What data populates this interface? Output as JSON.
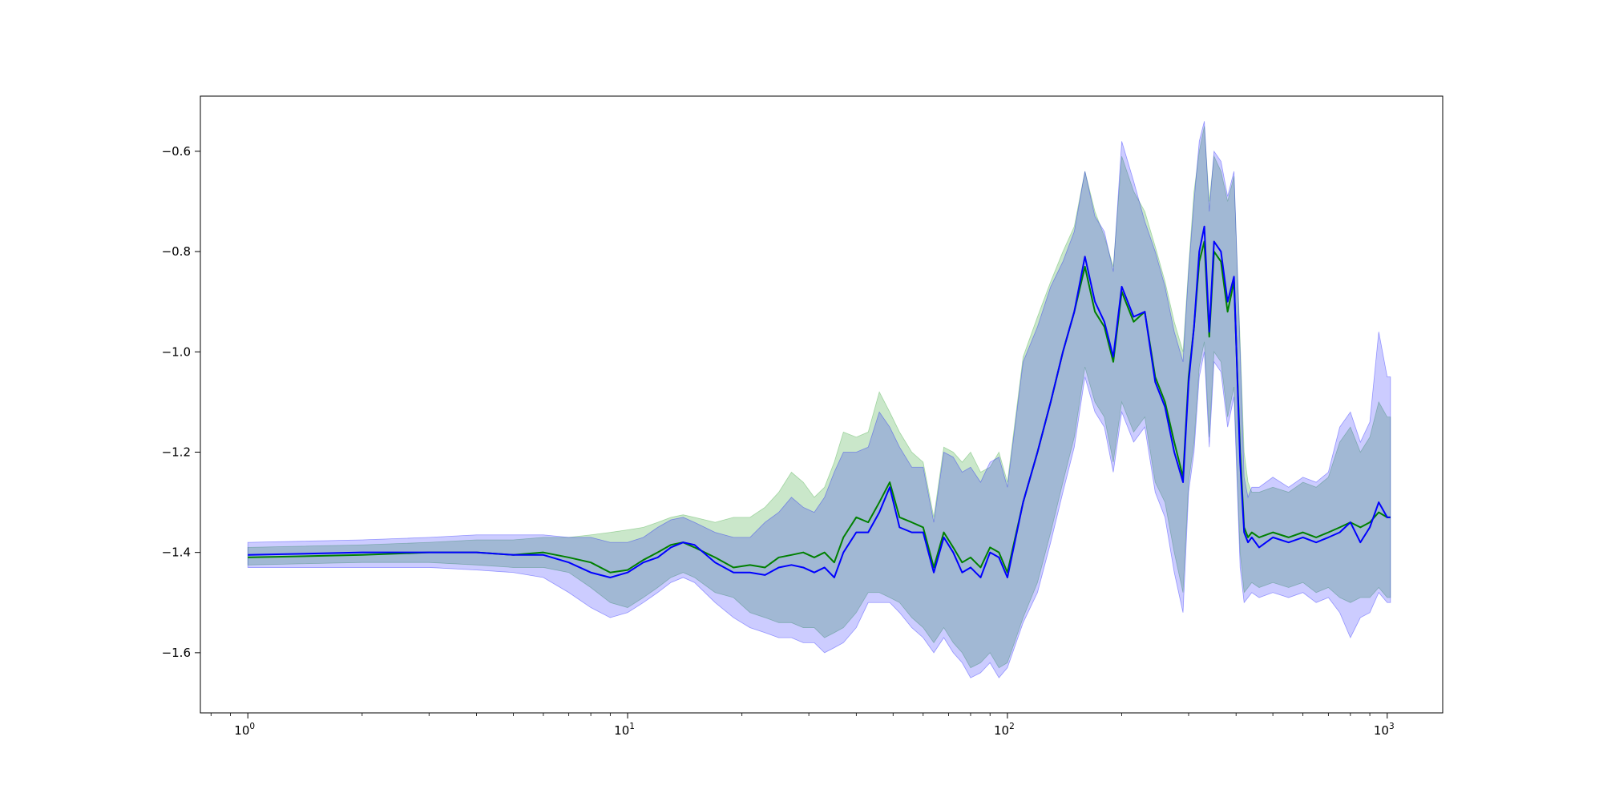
{
  "chart_data": {
    "type": "line",
    "title": "",
    "xlabel": "",
    "ylabel": "",
    "x_scale": "log",
    "xlim": [
      0.75,
      1400
    ],
    "ylim": [
      -1.72,
      -0.49
    ],
    "grid": false,
    "legend": "none",
    "x_ticks": [
      {
        "base": "10",
        "exp": "0",
        "value": 1
      },
      {
        "base": "10",
        "exp": "1",
        "value": 10
      },
      {
        "base": "10",
        "exp": "2",
        "value": 100
      },
      {
        "base": "10",
        "exp": "3",
        "value": 1000
      }
    ],
    "y_ticks": [
      {
        "label": "−0.6",
        "value": -0.6
      },
      {
        "label": "−0.8",
        "value": -0.8
      },
      {
        "label": "−1.0",
        "value": -1.0
      },
      {
        "label": "−1.2",
        "value": -1.2
      },
      {
        "label": "−1.4",
        "value": -1.4
      },
      {
        "label": "−1.6",
        "value": -1.6
      }
    ],
    "series": [
      {
        "color": "#008000",
        "band_color": "#2ca02c",
        "band_opacity": 0.25,
        "x": [
          1,
          2,
          3,
          4,
          5,
          6,
          7,
          8,
          9,
          10,
          11,
          12,
          13,
          14,
          15,
          17,
          19,
          21,
          23,
          25,
          27,
          29,
          31,
          33,
          35,
          37,
          40,
          43,
          46,
          49,
          52,
          56,
          60,
          64,
          68,
          72,
          76,
          80,
          85,
          90,
          95,
          100,
          110,
          120,
          130,
          140,
          150,
          160,
          170,
          180,
          190,
          200,
          215,
          230,
          245,
          260,
          275,
          290,
          300,
          310,
          320,
          330,
          340,
          350,
          365,
          380,
          395,
          410,
          420,
          430,
          440,
          460,
          500,
          550,
          600,
          650,
          700,
          750,
          800,
          850,
          900,
          950,
          1000,
          1020
        ],
        "y": [
          -1.41,
          -1.405,
          -1.4,
          -1.4,
          -1.405,
          -1.4,
          -1.41,
          -1.42,
          -1.44,
          -1.435,
          -1.415,
          -1.4,
          -1.385,
          -1.38,
          -1.39,
          -1.41,
          -1.43,
          -1.425,
          -1.43,
          -1.41,
          -1.405,
          -1.4,
          -1.41,
          -1.4,
          -1.42,
          -1.37,
          -1.33,
          -1.34,
          -1.3,
          -1.26,
          -1.33,
          -1.34,
          -1.35,
          -1.43,
          -1.36,
          -1.39,
          -1.42,
          -1.41,
          -1.43,
          -1.39,
          -1.4,
          -1.44,
          -1.3,
          -1.2,
          -1.1,
          -1.0,
          -0.92,
          -0.83,
          -0.92,
          -0.95,
          -1.02,
          -0.88,
          -0.94,
          -0.92,
          -1.05,
          -1.1,
          -1.18,
          -1.25,
          -1.05,
          -0.95,
          -0.82,
          -0.78,
          -0.97,
          -0.8,
          -0.82,
          -0.92,
          -0.86,
          -1.2,
          -1.35,
          -1.37,
          -1.36,
          -1.37,
          -1.36,
          -1.37,
          -1.36,
          -1.37,
          -1.36,
          -1.35,
          -1.34,
          -1.35,
          -1.34,
          -1.32,
          -1.33,
          -1.33
        ],
        "upper": [
          -1.39,
          -1.385,
          -1.38,
          -1.375,
          -1.375,
          -1.37,
          -1.37,
          -1.365,
          -1.36,
          -1.355,
          -1.35,
          -1.34,
          -1.33,
          -1.325,
          -1.33,
          -1.34,
          -1.33,
          -1.33,
          -1.31,
          -1.28,
          -1.24,
          -1.26,
          -1.29,
          -1.27,
          -1.22,
          -1.16,
          -1.17,
          -1.16,
          -1.08,
          -1.12,
          -1.16,
          -1.2,
          -1.22,
          -1.33,
          -1.19,
          -1.2,
          -1.22,
          -1.2,
          -1.24,
          -1.23,
          -1.2,
          -1.26,
          -1.01,
          -0.93,
          -0.86,
          -0.8,
          -0.75,
          -0.64,
          -0.72,
          -0.77,
          -0.83,
          -0.61,
          -0.68,
          -0.72,
          -0.79,
          -0.86,
          -0.94,
          -1.0,
          -0.83,
          -0.68,
          -0.6,
          -0.55,
          -0.7,
          -0.61,
          -0.64,
          -0.7,
          -0.65,
          -0.98,
          -1.2,
          -1.26,
          -1.28,
          -1.28,
          -1.27,
          -1.28,
          -1.26,
          -1.27,
          -1.25,
          -1.18,
          -1.15,
          -1.2,
          -1.17,
          -1.1,
          -1.13,
          -1.13
        ],
        "lower": [
          -1.425,
          -1.42,
          -1.42,
          -1.425,
          -1.43,
          -1.43,
          -1.44,
          -1.47,
          -1.5,
          -1.51,
          -1.49,
          -1.47,
          -1.45,
          -1.44,
          -1.45,
          -1.48,
          -1.49,
          -1.52,
          -1.53,
          -1.54,
          -1.54,
          -1.55,
          -1.55,
          -1.57,
          -1.56,
          -1.55,
          -1.52,
          -1.48,
          -1.48,
          -1.49,
          -1.5,
          -1.53,
          -1.55,
          -1.58,
          -1.55,
          -1.58,
          -1.6,
          -1.63,
          -1.62,
          -1.6,
          -1.63,
          -1.62,
          -1.53,
          -1.46,
          -1.36,
          -1.26,
          -1.17,
          -1.03,
          -1.1,
          -1.13,
          -1.22,
          -1.1,
          -1.16,
          -1.13,
          -1.26,
          -1.3,
          -1.4,
          -1.48,
          -1.26,
          -1.18,
          -1.03,
          -0.98,
          -1.17,
          -1.0,
          -1.02,
          -1.13,
          -1.07,
          -1.4,
          -1.48,
          -1.47,
          -1.46,
          -1.47,
          -1.46,
          -1.47,
          -1.46,
          -1.48,
          -1.47,
          -1.49,
          -1.5,
          -1.49,
          -1.49,
          -1.47,
          -1.49,
          -1.49
        ]
      },
      {
        "color": "#0000ff",
        "band_color": "#0000ff",
        "band_opacity": 0.2,
        "x": [
          1,
          2,
          3,
          4,
          5,
          6,
          7,
          8,
          9,
          10,
          11,
          12,
          13,
          14,
          15,
          17,
          19,
          21,
          23,
          25,
          27,
          29,
          31,
          33,
          35,
          37,
          40,
          43,
          46,
          49,
          52,
          56,
          60,
          64,
          68,
          72,
          76,
          80,
          85,
          90,
          95,
          100,
          110,
          120,
          130,
          140,
          150,
          160,
          170,
          180,
          190,
          200,
          215,
          230,
          245,
          260,
          275,
          290,
          300,
          310,
          320,
          330,
          340,
          350,
          365,
          380,
          395,
          410,
          420,
          430,
          440,
          460,
          500,
          550,
          600,
          650,
          700,
          750,
          800,
          850,
          900,
          950,
          1000,
          1020
        ],
        "y": [
          -1.405,
          -1.4,
          -1.4,
          -1.4,
          -1.405,
          -1.405,
          -1.42,
          -1.44,
          -1.45,
          -1.44,
          -1.42,
          -1.41,
          -1.39,
          -1.38,
          -1.385,
          -1.42,
          -1.44,
          -1.44,
          -1.445,
          -1.43,
          -1.425,
          -1.43,
          -1.44,
          -1.43,
          -1.45,
          -1.4,
          -1.36,
          -1.36,
          -1.32,
          -1.27,
          -1.35,
          -1.36,
          -1.36,
          -1.44,
          -1.37,
          -1.4,
          -1.44,
          -1.43,
          -1.45,
          -1.4,
          -1.41,
          -1.45,
          -1.3,
          -1.2,
          -1.1,
          -1.0,
          -0.92,
          -0.81,
          -0.9,
          -0.94,
          -1.01,
          -0.87,
          -0.93,
          -0.92,
          -1.06,
          -1.11,
          -1.2,
          -1.26,
          -1.06,
          -0.95,
          -0.8,
          -0.75,
          -0.96,
          -0.78,
          -0.8,
          -0.9,
          -0.85,
          -1.22,
          -1.36,
          -1.38,
          -1.37,
          -1.39,
          -1.37,
          -1.38,
          -1.37,
          -1.38,
          -1.37,
          -1.36,
          -1.34,
          -1.38,
          -1.35,
          -1.3,
          -1.33,
          -1.33
        ],
        "upper": [
          -1.38,
          -1.375,
          -1.37,
          -1.365,
          -1.365,
          -1.365,
          -1.37,
          -1.37,
          -1.38,
          -1.38,
          -1.37,
          -1.35,
          -1.335,
          -1.33,
          -1.34,
          -1.36,
          -1.37,
          -1.37,
          -1.34,
          -1.32,
          -1.29,
          -1.31,
          -1.32,
          -1.29,
          -1.24,
          -1.2,
          -1.2,
          -1.19,
          -1.12,
          -1.15,
          -1.19,
          -1.23,
          -1.23,
          -1.34,
          -1.2,
          -1.21,
          -1.24,
          -1.23,
          -1.26,
          -1.22,
          -1.21,
          -1.27,
          -1.02,
          -0.95,
          -0.87,
          -0.82,
          -0.76,
          -0.64,
          -0.73,
          -0.76,
          -0.84,
          -0.58,
          -0.66,
          -0.74,
          -0.8,
          -0.87,
          -0.96,
          -1.02,
          -0.84,
          -0.7,
          -0.58,
          -0.54,
          -0.72,
          -0.6,
          -0.62,
          -0.69,
          -0.64,
          -1.0,
          -1.25,
          -1.29,
          -1.27,
          -1.27,
          -1.25,
          -1.27,
          -1.25,
          -1.26,
          -1.24,
          -1.15,
          -1.12,
          -1.18,
          -1.14,
          -0.96,
          -1.05,
          -1.05
        ],
        "lower": [
          -1.43,
          -1.43,
          -1.43,
          -1.435,
          -1.44,
          -1.45,
          -1.48,
          -1.51,
          -1.53,
          -1.52,
          -1.5,
          -1.48,
          -1.46,
          -1.45,
          -1.46,
          -1.5,
          -1.53,
          -1.55,
          -1.56,
          -1.57,
          -1.57,
          -1.58,
          -1.58,
          -1.6,
          -1.59,
          -1.58,
          -1.55,
          -1.5,
          -1.5,
          -1.5,
          -1.52,
          -1.55,
          -1.57,
          -1.6,
          -1.57,
          -1.6,
          -1.62,
          -1.65,
          -1.64,
          -1.62,
          -1.65,
          -1.63,
          -1.54,
          -1.48,
          -1.38,
          -1.28,
          -1.19,
          -1.05,
          -1.12,
          -1.15,
          -1.24,
          -1.12,
          -1.18,
          -1.15,
          -1.28,
          -1.33,
          -1.44,
          -1.52,
          -1.28,
          -1.2,
          -1.05,
          -1.0,
          -1.19,
          -1.02,
          -1.04,
          -1.15,
          -1.09,
          -1.43,
          -1.5,
          -1.49,
          -1.48,
          -1.49,
          -1.48,
          -1.49,
          -1.48,
          -1.5,
          -1.49,
          -1.52,
          -1.57,
          -1.53,
          -1.52,
          -1.48,
          -1.5,
          -1.5
        ]
      }
    ]
  }
}
